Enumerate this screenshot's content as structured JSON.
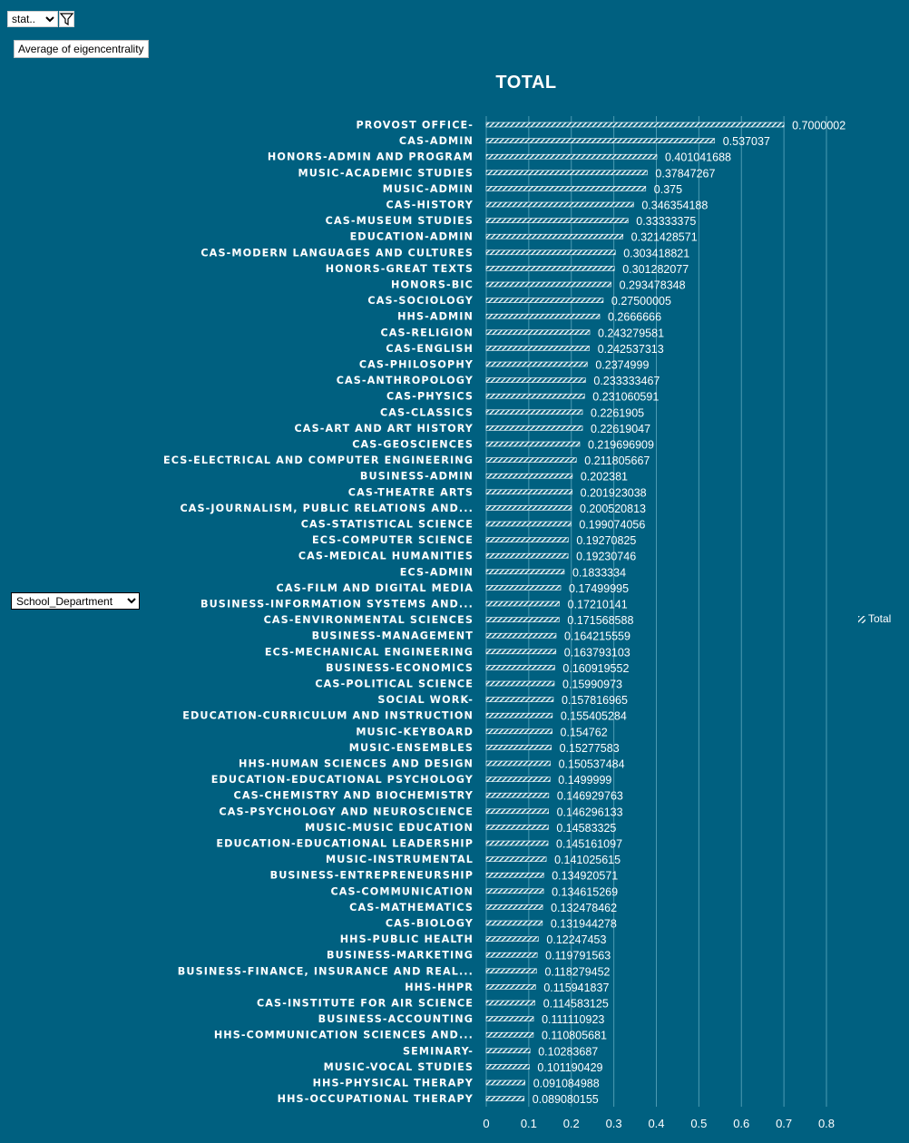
{
  "controls": {
    "filter_select_value": "stat..",
    "funnel_icon": "filter-funnel-icon",
    "measure_label": "Average of eigencentrality",
    "dimension_select_value": "School_Department"
  },
  "legend": {
    "label": "Total",
    "swatch_color": "#ffffff"
  },
  "colors": {
    "background": "#006080",
    "bar_fill": "#ffffff",
    "gridline": "#4d9bb3",
    "text": "#ffffff"
  },
  "chart_data": {
    "type": "bar",
    "orientation": "horizontal",
    "title": "TOTAL",
    "xlabel": "",
    "ylabel": "",
    "xlim": [
      0,
      0.8
    ],
    "x_ticks": [
      0,
      0.1,
      0.2,
      0.3,
      0.4,
      0.5,
      0.6,
      0.7,
      0.8
    ],
    "grid": true,
    "legend_position": "right",
    "series": [
      {
        "name": "Total",
        "categories": [
          "PROVOST OFFICE-",
          "CAS-ADMIN",
          "HONORS-ADMIN AND PROGRAM",
          "MUSIC-ACADEMIC STUDIES",
          "MUSIC-ADMIN",
          "CAS-HISTORY",
          "CAS-MUSEUM STUDIES",
          "EDUCATION-ADMIN",
          "CAS-MODERN LANGUAGES AND CULTURES",
          "HONORS-GREAT TEXTS",
          "HONORS-BIC",
          "CAS-SOCIOLOGY",
          "HHS-ADMIN",
          "CAS-RELIGION",
          "CAS-ENGLISH",
          "CAS-PHILOSOPHY",
          "CAS-ANTHROPOLOGY",
          "CAS-PHYSICS",
          "CAS-CLASSICS",
          "CAS-ART AND ART HISTORY",
          "CAS-GEOSCIENCES",
          "ECS-ELECTRICAL AND COMPUTER ENGINEERING",
          "BUSINESS-ADMIN",
          "CAS-THEATRE ARTS",
          "CAS-JOURNALISM, PUBLIC RELATIONS AND...",
          "CAS-STATISTICAL SCIENCE",
          "ECS-COMPUTER SCIENCE",
          "CAS-MEDICAL HUMANITIES",
          "ECS-ADMIN",
          "CAS-FILM AND DIGITAL MEDIA",
          "BUSINESS-INFORMATION SYSTEMS AND...",
          "CAS-ENVIRONMENTAL SCIENCES",
          "BUSINESS-MANAGEMENT",
          "ECS-MECHANICAL ENGINEERING",
          "BUSINESS-ECONOMICS",
          "CAS-POLITICAL SCIENCE",
          "SOCIAL WORK-",
          "EDUCATION-CURRICULUM AND INSTRUCTION",
          "MUSIC-KEYBOARD",
          "MUSIC-ENSEMBLES",
          "HHS-HUMAN SCIENCES AND DESIGN",
          "EDUCATION-EDUCATIONAL PSYCHOLOGY",
          "CAS-CHEMISTRY AND BIOCHEMISTRY",
          "CAS-PSYCHOLOGY AND NEUROSCIENCE",
          "MUSIC-MUSIC EDUCATION",
          "EDUCATION-EDUCATIONAL LEADERSHIP",
          "MUSIC-INSTRUMENTAL",
          "BUSINESS-ENTREPRENEURSHIP",
          "CAS-COMMUNICATION",
          "CAS-MATHEMATICS",
          "CAS-BIOLOGY",
          "HHS-PUBLIC HEALTH",
          "BUSINESS-MARKETING",
          "BUSINESS-FINANCE, INSURANCE AND REAL...",
          "HHS-HHPR",
          "CAS-INSTITUTE FOR AIR SCIENCE",
          "BUSINESS-ACCOUNTING",
          "HHS-COMMUNICATION SCIENCES AND...",
          "SEMINARY-",
          "MUSIC-VOCAL STUDIES",
          "HHS-PHYSICAL THERAPY",
          "HHS-OCCUPATIONAL THERAPY"
        ],
        "values": [
          0.7000002,
          0.537037,
          0.401041688,
          0.37847267,
          0.375,
          0.346354188,
          0.33333375,
          0.321428571,
          0.303418821,
          0.301282077,
          0.293478348,
          0.27500005,
          0.2666666,
          0.243279581,
          0.242537313,
          0.2374999,
          0.233333467,
          0.231060591,
          0.2261905,
          0.22619047,
          0.219696909,
          0.211805667,
          0.202381,
          0.201923038,
          0.200520813,
          0.199074056,
          0.19270825,
          0.19230746,
          0.1833334,
          0.17499995,
          0.17210141,
          0.171568588,
          0.164215559,
          0.163793103,
          0.160919552,
          0.15990973,
          0.157816965,
          0.155405284,
          0.154762,
          0.15277583,
          0.150537484,
          0.1499999,
          0.146929763,
          0.146296133,
          0.14583325,
          0.145161097,
          0.141025615,
          0.134920571,
          0.134615269,
          0.132478462,
          0.131944278,
          0.12247453,
          0.119791563,
          0.118279452,
          0.115941837,
          0.114583125,
          0.111110923,
          0.110805681,
          0.10283687,
          0.101190429,
          0.091084988,
          0.089080155
        ],
        "value_labels": [
          "0.7000002",
          "0.537037",
          "0.401041688",
          "0.37847267",
          "0.375",
          "0.346354188",
          "0.33333375",
          "0.321428571",
          "0.303418821",
          "0.301282077",
          "0.293478348",
          "0.27500005",
          "0.2666666",
          "0.243279581",
          "0.242537313",
          "0.2374999",
          "0.233333467",
          "0.231060591",
          "0.2261905",
          "0.22619047",
          "0.219696909",
          "0.211805667",
          "0.202381",
          "0.201923038",
          "0.200520813",
          "0.199074056",
          "0.19270825",
          "0.19230746",
          "0.1833334",
          "0.17499995",
          "0.17210141",
          "0.171568588",
          "0.164215559",
          "0.163793103",
          "0.160919552",
          "0.15990973",
          "0.157816965",
          "0.155405284",
          "0.154762",
          "0.15277583",
          "0.150537484",
          "0.1499999",
          "0.146929763",
          "0.146296133",
          "0.14583325",
          "0.145161097",
          "0.141025615",
          "0.134920571",
          "0.134615269",
          "0.132478462",
          "0.131944278",
          "0.12247453",
          "0.119791563",
          "0.118279452",
          "0.115941837",
          "0.114583125",
          "0.111110923",
          "0.110805681",
          "0.10283687",
          "0.101190429",
          "0.091084988",
          "0.089080155"
        ]
      }
    ]
  }
}
